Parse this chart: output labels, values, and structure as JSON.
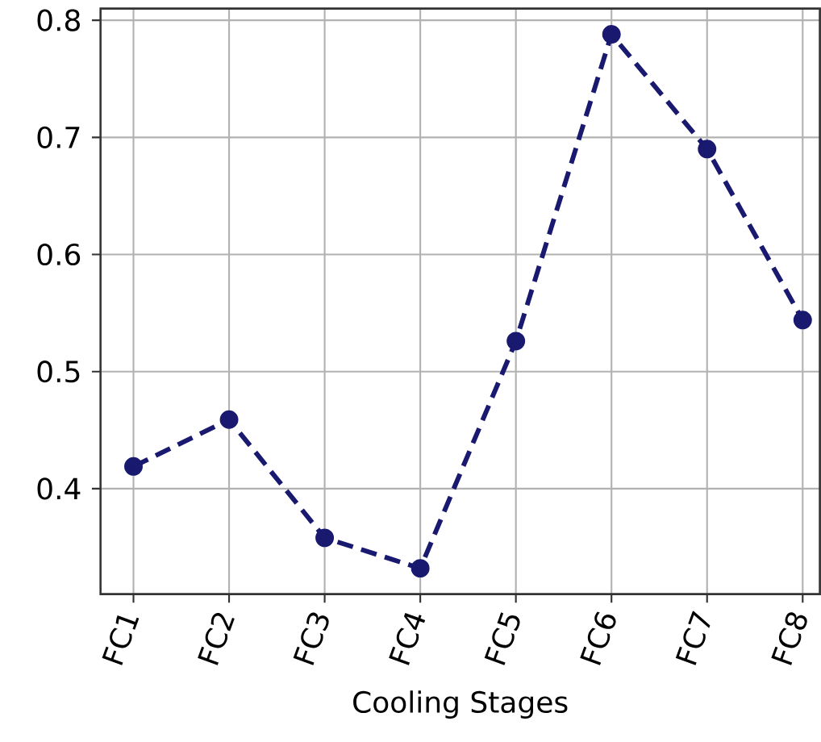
{
  "chart_data": {
    "type": "line",
    "xlabel": "Cooling Stages",
    "categories": [
      "FC1",
      "FC2",
      "FC3",
      "FC4",
      "FC5",
      "FC6",
      "FC7",
      "FC8"
    ],
    "values": [
      0.419,
      0.459,
      0.358,
      0.332,
      0.526,
      0.788,
      0.69,
      0.544
    ],
    "color": "#191970",
    "marker": "circle",
    "line_style": "dashed",
    "grid": true,
    "ylim": [
      0.31,
      0.81
    ],
    "yticks": [
      0.4,
      0.5,
      0.6,
      0.7,
      0.8
    ]
  }
}
